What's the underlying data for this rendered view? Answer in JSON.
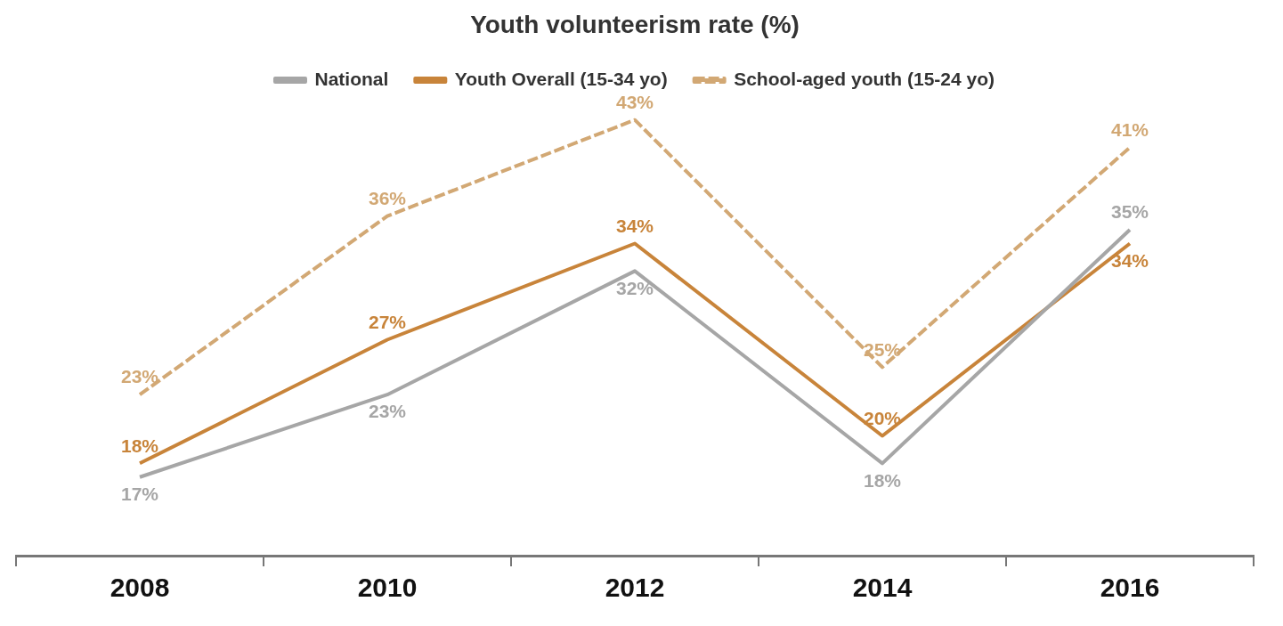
{
  "chart_data": {
    "type": "line",
    "title": "Youth volunteerism rate (%)",
    "categories": [
      "2008",
      "2010",
      "2012",
      "2014",
      "2016"
    ],
    "series": [
      {
        "name": "National",
        "color": "#a6a6a6",
        "values": [
          17,
          23,
          32,
          18,
          35
        ],
        "value_labels": [
          "17%",
          "23%",
          "32%",
          "18%",
          "35%"
        ]
      },
      {
        "name": "Youth Overall (15-34 yo)",
        "color": "#c8843a",
        "values": [
          18,
          27,
          34,
          20,
          34
        ],
        "value_labels": [
          "18%",
          "27%",
          "34%",
          "20%",
          "34%"
        ]
      },
      {
        "name": "School-aged youth (15-24 yo)",
        "color": "#d2a874",
        "line_style": "dashed",
        "values": [
          23,
          36,
          43,
          25,
          41
        ],
        "value_labels": [
          "23%",
          "36%",
          "43%",
          "25%",
          "41%"
        ]
      }
    ],
    "legend": "top",
    "grid": false,
    "marker": "none",
    "tick_labels": "x"
  }
}
